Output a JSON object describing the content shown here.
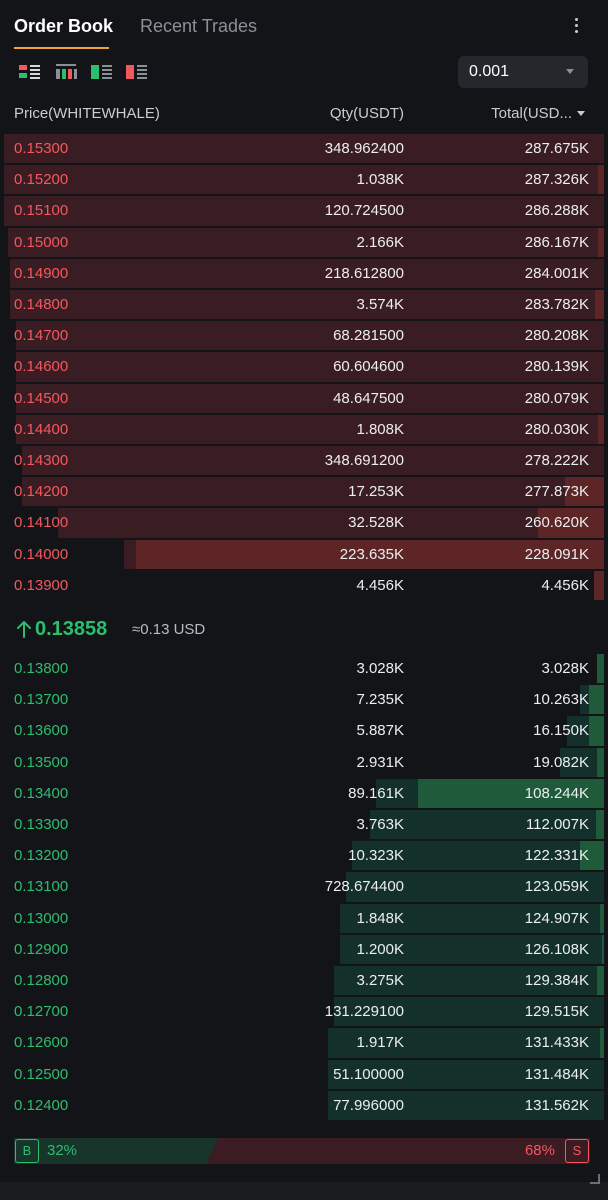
{
  "tabs": [
    {
      "label": "Order Book",
      "active": true
    },
    {
      "label": "Recent Trades",
      "active": false
    }
  ],
  "toolbar": {
    "views": [
      "view-both-icon",
      "view-depth-icon",
      "view-bids-icon",
      "view-asks-icon"
    ],
    "precision": "0.001"
  },
  "header": {
    "price": "Price(WHITEWHALE)",
    "qty": "Qty(USDT)",
    "total": "Total(USD..."
  },
  "colors": {
    "ask": "#f5575f",
    "bid": "#2dbd6e",
    "accent": "#f0a33a"
  },
  "asks": [
    {
      "price": "0.15300",
      "qty": "348.962400",
      "total": "287.675K",
      "depth": 1.0,
      "qty_depth": 0.0
    },
    {
      "price": "0.15200",
      "qty": "1.038K",
      "total": "287.326K",
      "depth": 1.0,
      "qty_depth": 0.01
    },
    {
      "price": "0.15100",
      "qty": "120.724500",
      "total": "286.288K",
      "depth": 1.0,
      "qty_depth": 0.0
    },
    {
      "price": "0.15000",
      "qty": "2.166K",
      "total": "286.167K",
      "depth": 0.994,
      "qty_depth": 0.01
    },
    {
      "price": "0.14900",
      "qty": "218.612800",
      "total": "284.001K",
      "depth": 0.99,
      "qty_depth": 0.0
    },
    {
      "price": "0.14800",
      "qty": "3.574K",
      "total": "283.782K",
      "depth": 0.99,
      "qty_depth": 0.015
    },
    {
      "price": "0.14700",
      "qty": "68.281500",
      "total": "280.208K",
      "depth": 0.98,
      "qty_depth": 0.0
    },
    {
      "price": "0.14600",
      "qty": "60.604600",
      "total": "280.139K",
      "depth": 0.98,
      "qty_depth": 0.0
    },
    {
      "price": "0.14500",
      "qty": "48.647500",
      "total": "280.079K",
      "depth": 0.98,
      "qty_depth": 0.0
    },
    {
      "price": "0.14400",
      "qty": "1.808K",
      "total": "280.030K",
      "depth": 0.98,
      "qty_depth": 0.01
    },
    {
      "price": "0.14300",
      "qty": "348.691200",
      "total": "278.222K",
      "depth": 0.97,
      "qty_depth": 0.0
    },
    {
      "price": "0.14200",
      "qty": "17.253K",
      "total": "277.873K",
      "depth": 0.97,
      "qty_depth": 0.065
    },
    {
      "price": "0.14100",
      "qty": "32.528K",
      "total": "260.620K",
      "depth": 0.91,
      "qty_depth": 0.11
    },
    {
      "price": "0.14000",
      "qty": "223.635K",
      "total": "228.091K",
      "depth": 0.8,
      "qty_depth": 0.78
    },
    {
      "price": "0.13900",
      "qty": "4.456K",
      "total": "4.456K",
      "depth": 0.016,
      "qty_depth": 0.016
    }
  ],
  "mid": {
    "price": "0.13858",
    "usd": "≈0.13 USD",
    "direction": "up"
  },
  "bids": [
    {
      "price": "0.13800",
      "qty": "3.028K",
      "total": "3.028K",
      "depth": 0.012,
      "qty_depth": 0.012
    },
    {
      "price": "0.13700",
      "qty": "7.235K",
      "total": "10.263K",
      "depth": 0.04,
      "qty_depth": 0.025
    },
    {
      "price": "0.13600",
      "qty": "5.887K",
      "total": "16.150K",
      "depth": 0.062,
      "qty_depth": 0.025
    },
    {
      "price": "0.13500",
      "qty": "2.931K",
      "total": "19.082K",
      "depth": 0.074,
      "qty_depth": 0.012
    },
    {
      "price": "0.13400",
      "qty": "89.161K",
      "total": "108.244K",
      "depth": 0.38,
      "qty_depth": 0.31
    },
    {
      "price": "0.13300",
      "qty": "3.763K",
      "total": "112.007K",
      "depth": 0.39,
      "qty_depth": 0.013
    },
    {
      "price": "0.13200",
      "qty": "10.323K",
      "total": "122.331K",
      "depth": 0.42,
      "qty_depth": 0.04
    },
    {
      "price": "0.13100",
      "qty": "728.674400",
      "total": "123.059K",
      "depth": 0.43,
      "qty_depth": 0.0
    },
    {
      "price": "0.13000",
      "qty": "1.848K",
      "total": "124.907K",
      "depth": 0.44,
      "qty_depth": 0.006
    },
    {
      "price": "0.12900",
      "qty": "1.200K",
      "total": "126.108K",
      "depth": 0.44,
      "qty_depth": 0.004
    },
    {
      "price": "0.12800",
      "qty": "3.275K",
      "total": "129.384K",
      "depth": 0.45,
      "qty_depth": 0.011
    },
    {
      "price": "0.12700",
      "qty": "131.229100",
      "total": "129.515K",
      "depth": 0.45,
      "qty_depth": 0.0
    },
    {
      "price": "0.12600",
      "qty": "1.917K",
      "total": "131.433K",
      "depth": 0.46,
      "qty_depth": 0.006
    },
    {
      "price": "0.12500",
      "qty": "51.100000",
      "total": "131.484K",
      "depth": 0.46,
      "qty_depth": 0.0
    },
    {
      "price": "0.12400",
      "qty": "77.996000",
      "total": "131.562K",
      "depth": 0.46,
      "qty_depth": 0.0
    }
  ],
  "ratio": {
    "buy_label": "B",
    "buy_pct": "32%",
    "sell_label": "S",
    "sell_pct": "68%",
    "buy_value": 0.32,
    "sell_value": 0.68
  }
}
